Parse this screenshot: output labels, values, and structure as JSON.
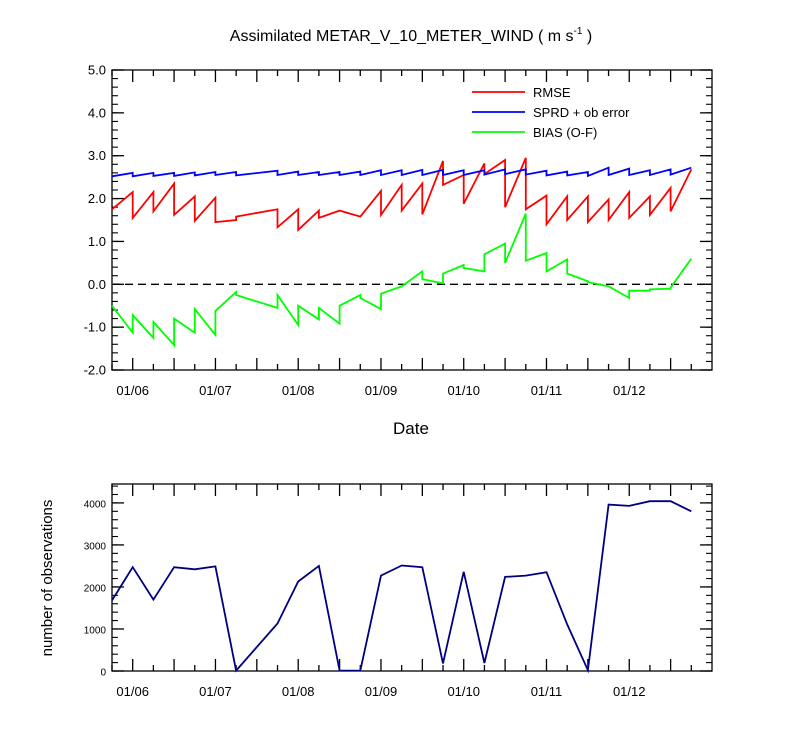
{
  "chart_data": [
    {
      "type": "line",
      "title": "Assimilated METAR_V_10_METER_WIND ( m s",
      "title_superscript": "-1",
      "title_close": " )",
      "xlabel": "Date",
      "ylabel": "",
      "ylim": [
        -2.0,
        5.0
      ],
      "xlim": [
        0,
        29
      ],
      "yticks": [
        "-2.0",
        "-1.0",
        "0.0",
        "1.0",
        "2.0",
        "3.0",
        "4.0",
        "5.0"
      ],
      "ytick_values": [
        -2,
        -1,
        0,
        1,
        2,
        3,
        4,
        5
      ],
      "xtick_labels": [
        "01/06",
        "01/07",
        "01/08",
        "01/09",
        "01/10",
        "01/11",
        "01/12"
      ],
      "xtick_positions": [
        1,
        5,
        9,
        13,
        17,
        21,
        25
      ],
      "zero_line": true,
      "legend_position": "top-right",
      "colors": {
        "rmse": "#ff0000",
        "sprd": "#0000ff",
        "bias": "#00ff00"
      },
      "series": [
        {
          "name": "RMSE",
          "key": "rmse",
          "points": [
            [
              0,
              1.75
            ],
            [
              1,
              2.15
            ],
            [
              1,
              1.55
            ],
            [
              2,
              2.15
            ],
            [
              2,
              1.7
            ],
            [
              3,
              2.35
            ],
            [
              3,
              1.62
            ],
            [
              4,
              2.05
            ],
            [
              4,
              1.48
            ],
            [
              5,
              2.02
            ],
            [
              5,
              1.45
            ],
            [
              6,
              1.5
            ],
            [
              6,
              1.58
            ],
            [
              8,
              1.75
            ],
            [
              8,
              1.33
            ],
            [
              9,
              1.75
            ],
            [
              9,
              1.27
            ],
            [
              10,
              1.72
            ],
            [
              10,
              1.55
            ],
            [
              11,
              1.72
            ],
            [
              12,
              1.58
            ],
            [
              13,
              2.18
            ],
            [
              13,
              1.62
            ],
            [
              14,
              2.32
            ],
            [
              14,
              1.72
            ],
            [
              15,
              2.35
            ],
            [
              15,
              1.63
            ],
            [
              16,
              2.88
            ],
            [
              16,
              2.32
            ],
            [
              17,
              2.55
            ],
            [
              17,
              1.88
            ],
            [
              18,
              2.82
            ],
            [
              18,
              2.57
            ],
            [
              19,
              2.9
            ],
            [
              19,
              1.8
            ],
            [
              20,
              2.95
            ],
            [
              20,
              1.75
            ],
            [
              21,
              2.07
            ],
            [
              21,
              1.4
            ],
            [
              22,
              2.05
            ],
            [
              22,
              1.5
            ],
            [
              23,
              2.05
            ],
            [
              23,
              1.45
            ],
            [
              24,
              1.98
            ],
            [
              24,
              1.5
            ],
            [
              25,
              2.15
            ],
            [
              25,
              1.55
            ],
            [
              26,
              2.05
            ],
            [
              26,
              1.62
            ],
            [
              27,
              2.25
            ],
            [
              27,
              1.7
            ],
            [
              28,
              2.68
            ]
          ]
        },
        {
          "name": "SPRD + ob error",
          "key": "sprd",
          "points": [
            [
              0,
              2.52
            ],
            [
              1,
              2.6
            ],
            [
              1,
              2.52
            ],
            [
              2,
              2.6
            ],
            [
              2,
              2.53
            ],
            [
              3,
              2.6
            ],
            [
              3,
              2.53
            ],
            [
              4,
              2.61
            ],
            [
              4,
              2.54
            ],
            [
              5,
              2.62
            ],
            [
              5,
              2.55
            ],
            [
              6,
              2.62
            ],
            [
              6,
              2.54
            ],
            [
              8,
              2.65
            ],
            [
              8,
              2.55
            ],
            [
              9,
              2.63
            ],
            [
              9,
              2.55
            ],
            [
              10,
              2.62
            ],
            [
              10,
              2.55
            ],
            [
              11,
              2.62
            ],
            [
              11,
              2.55
            ],
            [
              12,
              2.63
            ],
            [
              12,
              2.55
            ],
            [
              13,
              2.66
            ],
            [
              13,
              2.55
            ],
            [
              14,
              2.66
            ],
            [
              14,
              2.55
            ],
            [
              15,
              2.67
            ],
            [
              15,
              2.55
            ],
            [
              16,
              2.67
            ],
            [
              16,
              2.55
            ],
            [
              17,
              2.66
            ],
            [
              17,
              2.55
            ],
            [
              18,
              2.66
            ],
            [
              18,
              2.56
            ],
            [
              19,
              2.68
            ],
            [
              19,
              2.57
            ],
            [
              20,
              2.68
            ],
            [
              20,
              2.56
            ],
            [
              21,
              2.65
            ],
            [
              21,
              2.54
            ],
            [
              22,
              2.63
            ],
            [
              22,
              2.54
            ],
            [
              23,
              2.62
            ],
            [
              23,
              2.53
            ],
            [
              24,
              2.72
            ],
            [
              24,
              2.55
            ],
            [
              25,
              2.7
            ],
            [
              25,
              2.55
            ],
            [
              26,
              2.66
            ],
            [
              26,
              2.55
            ],
            [
              27,
              2.68
            ],
            [
              27,
              2.56
            ],
            [
              28,
              2.72
            ]
          ]
        },
        {
          "name": "BIAS (O-F)",
          "key": "bias",
          "points": [
            [
              0,
              -0.5
            ],
            [
              1,
              -1.13
            ],
            [
              1,
              -0.72
            ],
            [
              2,
              -1.25
            ],
            [
              2,
              -0.88
            ],
            [
              3,
              -1.42
            ],
            [
              3,
              -0.8
            ],
            [
              4,
              -1.13
            ],
            [
              4,
              -0.58
            ],
            [
              5,
              -1.18
            ],
            [
              5,
              -0.62
            ],
            [
              6,
              -0.18
            ],
            [
              6,
              -0.25
            ],
            [
              8,
              -0.55
            ],
            [
              8,
              -0.25
            ],
            [
              9,
              -0.95
            ],
            [
              9,
              -0.5
            ],
            [
              10,
              -0.82
            ],
            [
              10,
              -0.55
            ],
            [
              11,
              -0.92
            ],
            [
              11,
              -0.5
            ],
            [
              12,
              -0.25
            ],
            [
              12,
              -0.32
            ],
            [
              13,
              -0.58
            ],
            [
              13,
              -0.22
            ],
            [
              14,
              -0.05
            ],
            [
              14,
              -0.05
            ],
            [
              15,
              0.3
            ],
            [
              15,
              0.12
            ],
            [
              16,
              0.02
            ],
            [
              16,
              0.25
            ],
            [
              17,
              0.45
            ],
            [
              17,
              0.38
            ],
            [
              18,
              0.3
            ],
            [
              18,
              0.7
            ],
            [
              19,
              0.95
            ],
            [
              19,
              0.5
            ],
            [
              20,
              1.65
            ],
            [
              20,
              0.55
            ],
            [
              21,
              0.73
            ],
            [
              21,
              0.3
            ],
            [
              22,
              0.58
            ],
            [
              22,
              0.25
            ],
            [
              23,
              0.07
            ],
            [
              23,
              0.05
            ],
            [
              24,
              -0.05
            ],
            [
              24,
              -0.05
            ],
            [
              25,
              -0.32
            ],
            [
              25,
              -0.15
            ],
            [
              26,
              -0.15
            ],
            [
              26,
              -0.12
            ],
            [
              27,
              -0.1
            ],
            [
              27,
              -0.08
            ],
            [
              28,
              0.6
            ]
          ]
        }
      ]
    },
    {
      "type": "line",
      "title": "",
      "xlabel": "",
      "ylabel": "number of observations",
      "ylim": [
        0,
        4450
      ],
      "xlim": [
        0,
        29
      ],
      "yticks": [
        "0",
        "1000",
        "2000",
        "3000",
        "4000"
      ],
      "ytick_values": [
        0,
        1000,
        2000,
        3000,
        4000
      ],
      "xtick_labels": [
        "01/06",
        "01/07",
        "01/08",
        "01/09",
        "01/10",
        "01/11",
        "01/12"
      ],
      "xtick_positions": [
        1,
        5,
        9,
        13,
        17,
        21,
        25
      ],
      "legend_position": "none",
      "colors": {
        "obs": "#00007f"
      },
      "series": [
        {
          "name": "number of observations",
          "key": "obs",
          "points": [
            [
              0,
              1680
            ],
            [
              1,
              2470
            ],
            [
              2,
              1700
            ],
            [
              3,
              2470
            ],
            [
              4,
              2420
            ],
            [
              5,
              2490
            ],
            [
              6,
              10
            ],
            [
              8,
              1130
            ],
            [
              9,
              2130
            ],
            [
              10,
              2500
            ],
            [
              11,
              10
            ],
            [
              12,
              10
            ],
            [
              13,
              2270
            ],
            [
              14,
              2510
            ],
            [
              15,
              2470
            ],
            [
              16,
              180
            ],
            [
              17,
              2360
            ],
            [
              18,
              190
            ],
            [
              19,
              2240
            ],
            [
              20,
              2270
            ],
            [
              21,
              2350
            ],
            [
              22,
              1110
            ],
            [
              23,
              20
            ],
            [
              24,
              3960
            ],
            [
              25,
              3930
            ],
            [
              26,
              4040
            ],
            [
              27,
              4040
            ],
            [
              28,
              3800
            ]
          ]
        }
      ]
    }
  ]
}
